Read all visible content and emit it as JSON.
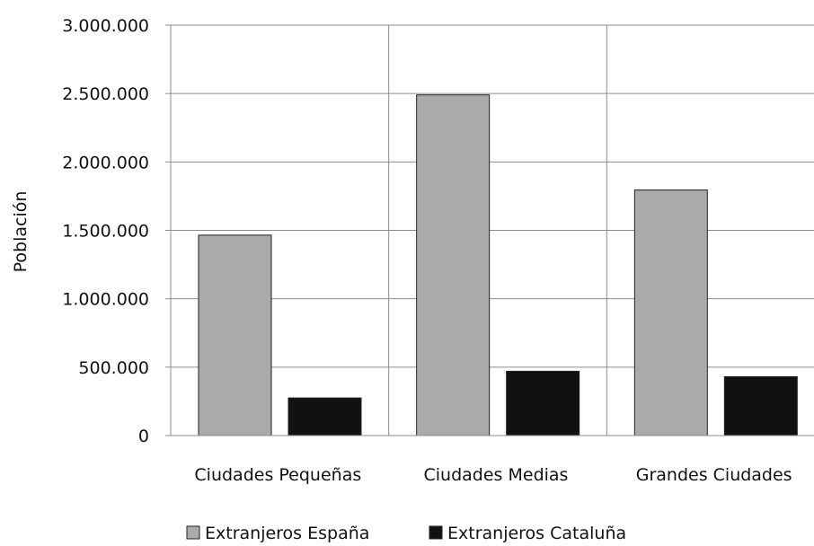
{
  "chart_data": {
    "type": "bar",
    "title": "",
    "xlabel": "",
    "ylabel": "Población",
    "categories": [
      "Ciudades Pequeñas",
      "Ciudades Medias",
      "Grandes Ciudades"
    ],
    "series": [
      {
        "name": "Extranjeros España",
        "values": [
          1465000,
          2490000,
          1795000
        ],
        "color": "#aaaaaa"
      },
      {
        "name": "Extranjeros Cataluña",
        "values": [
          275000,
          470000,
          430000
        ],
        "color": "#111111"
      }
    ],
    "ylim": [
      0,
      3000000
    ],
    "yticks": [
      0,
      500000,
      1000000,
      1500000,
      2000000,
      2500000,
      3000000
    ],
    "ytick_labels": [
      "0",
      "500.000",
      "1.000.000",
      "1.500.000",
      "2.000.000",
      "2.500.000",
      "3.000.000"
    ],
    "grid": true,
    "legend_position": "bottom"
  }
}
